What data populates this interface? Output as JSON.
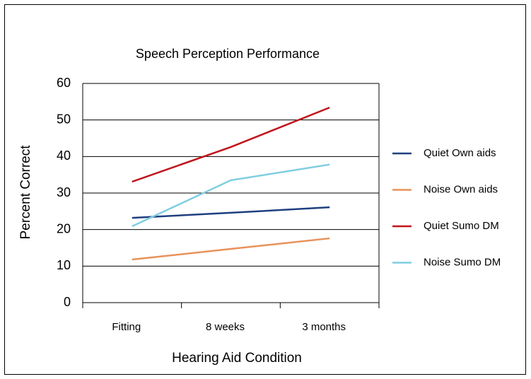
{
  "chart_data": {
    "type": "line",
    "title": "Speech Perception Performance",
    "x_label": "Hearing Aid Condition",
    "y_label": "Percent Correct",
    "categories": [
      "Fitting",
      "8 weeks",
      "3 months"
    ],
    "series": [
      {
        "name": "Quiet Own aids",
        "color": "#1f3f7f",
        "values": [
          23.2,
          24.6,
          26.1
        ]
      },
      {
        "name": "Noise Own aids",
        "color": "#e8925a",
        "values": [
          11.8,
          14.7,
          17.6
        ]
      },
      {
        "name": "Quiet Sumo DM",
        "color": "#c0141c",
        "values": [
          33.1,
          42.6,
          53.4
        ]
      },
      {
        "name": "Noise Sumo DM",
        "color": "#7fcde0",
        "values": [
          20.9,
          33.5,
          37.8
        ]
      }
    ],
    "ylim": [
      0,
      60
    ],
    "yticks": [
      0,
      10,
      20,
      30,
      40,
      50,
      60
    ],
    "grid": true,
    "legend": "right"
  }
}
